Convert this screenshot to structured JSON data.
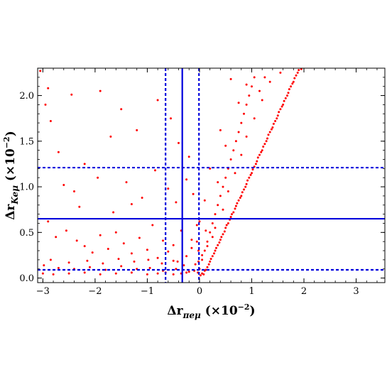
{
  "chart_data": {
    "type": "scatter",
    "title": "",
    "xlabel": {
      "symbol": "Δr",
      "subscript": "πeμ",
      "unit_prefix": " (×10",
      "exponent": "−2",
      "unit_suffix": ")"
    },
    "ylabel": {
      "symbol": "Δr",
      "subscript": "Keμ",
      "unit_prefix": " (×10",
      "exponent": "−2",
      "unit_suffix": ")"
    },
    "xlim": [
      -3.1,
      3.55
    ],
    "ylim": [
      -0.05,
      2.3
    ],
    "x_ticks": [
      -3,
      -2,
      -1,
      0,
      1,
      2,
      3
    ],
    "x_tick_labels": [
      "−3",
      "−2",
      "−1",
      "0",
      "1",
      "2",
      "3"
    ],
    "y_ticks": [
      0.0,
      0.5,
      1.0,
      1.5,
      2.0
    ],
    "y_tick_labels": [
      "0.0",
      "0.5",
      "1.0",
      "1.5",
      "2.0"
    ],
    "frame": true,
    "grid": false,
    "point_color": "#ff0000",
    "line_color": "#0000dd",
    "reference_lines": {
      "vertical_solid": [
        -0.33
      ],
      "vertical_dashed": [
        -0.65,
        -0.01
      ],
      "horizontal_solid": [
        0.65
      ],
      "horizontal_dashed": [
        0.09,
        1.21
      ]
    },
    "series": [
      {
        "points": [
          [
            -3.05,
            2.27
          ],
          [
            -2.9,
            2.08
          ],
          [
            -2.95,
            1.9
          ],
          [
            -2.85,
            1.72
          ],
          [
            -2.45,
            2.01
          ],
          [
            -2.7,
            1.38
          ],
          [
            -2.6,
            1.02
          ],
          [
            -2.4,
            0.95
          ],
          [
            -2.9,
            0.62
          ],
          [
            -2.75,
            0.45
          ],
          [
            -2.55,
            0.52
          ],
          [
            -2.35,
            0.41
          ],
          [
            -2.2,
            0.35
          ],
          [
            -2.05,
            0.28
          ],
          [
            -1.9,
            0.47
          ],
          [
            -1.75,
            0.32
          ],
          [
            -1.6,
            0.5
          ],
          [
            -1.45,
            0.38
          ],
          [
            -1.3,
            0.27
          ],
          [
            -1.15,
            0.44
          ],
          [
            -1.0,
            0.31
          ],
          [
            -0.9,
            0.58
          ],
          [
            -0.8,
            0.22
          ],
          [
            -0.7,
            0.41
          ],
          [
            -0.6,
            0.29
          ],
          [
            -0.5,
            0.36
          ],
          [
            -0.42,
            0.18
          ],
          [
            -0.35,
            0.52
          ],
          [
            -0.25,
            0.24
          ],
          [
            -0.15,
            0.33
          ],
          [
            -0.08,
            0.15
          ],
          [
            -2.98,
            0.14
          ],
          [
            -2.7,
            0.11
          ],
          [
            -2.4,
            0.1
          ],
          [
            -2.1,
            0.12
          ],
          [
            -1.8,
            0.09
          ],
          [
            -1.5,
            0.13
          ],
          [
            -1.2,
            0.1
          ],
          [
            -0.95,
            0.11
          ],
          [
            -0.7,
            0.08
          ],
          [
            -0.45,
            0.1
          ],
          [
            -0.2,
            0.07
          ],
          [
            -2.85,
            0.2
          ],
          [
            -2.5,
            0.17
          ],
          [
            -2.15,
            0.19
          ],
          [
            -1.85,
            0.16
          ],
          [
            -1.55,
            0.21
          ],
          [
            -1.25,
            0.18
          ],
          [
            -0.98,
            0.2
          ],
          [
            -0.72,
            0.16
          ],
          [
            -0.5,
            0.19
          ],
          [
            -0.3,
            0.14
          ],
          [
            -1.9,
            2.05
          ],
          [
            -1.5,
            1.85
          ],
          [
            -1.2,
            1.62
          ],
          [
            -0.8,
            1.95
          ],
          [
            -0.55,
            1.75
          ],
          [
            -0.4,
            1.48
          ],
          [
            -0.2,
            1.33
          ],
          [
            -1.7,
            1.55
          ],
          [
            -2.2,
            1.25
          ],
          [
            -1.95,
            1.1
          ],
          [
            -1.4,
            1.05
          ],
          [
            -1.1,
            0.88
          ],
          [
            -0.85,
            1.18
          ],
          [
            -0.6,
            0.98
          ],
          [
            -0.45,
            0.83
          ],
          [
            -0.25,
            1.08
          ],
          [
            -0.12,
            0.92
          ],
          [
            -2.3,
            0.78
          ],
          [
            -1.65,
            0.72
          ],
          [
            -1.3,
            0.81
          ],
          [
            -0.15,
            0.42
          ],
          [
            -0.05,
            0.58
          ],
          [
            0.05,
            0.05
          ],
          [
            0.1,
            0.08
          ],
          [
            0.15,
            0.12
          ],
          [
            0.2,
            0.18
          ],
          [
            0.25,
            0.24
          ],
          [
            0.3,
            0.3
          ],
          [
            0.35,
            0.36
          ],
          [
            0.4,
            0.42
          ],
          [
            0.45,
            0.48
          ],
          [
            0.5,
            0.55
          ],
          [
            0.55,
            0.6
          ],
          [
            0.6,
            0.67
          ],
          [
            0.65,
            0.72
          ],
          [
            0.7,
            0.79
          ],
          [
            0.75,
            0.85
          ],
          [
            0.8,
            0.9
          ],
          [
            0.85,
            0.97
          ],
          [
            0.9,
            1.03
          ],
          [
            0.95,
            1.1
          ],
          [
            1.0,
            1.15
          ],
          [
            1.05,
            1.22
          ],
          [
            1.1,
            1.28
          ],
          [
            1.15,
            1.35
          ],
          [
            1.2,
            1.4
          ],
          [
            1.25,
            1.47
          ],
          [
            1.3,
            1.53
          ],
          [
            1.35,
            1.6
          ],
          [
            1.4,
            1.65
          ],
          [
            1.45,
            1.72
          ],
          [
            1.5,
            1.78
          ],
          [
            1.55,
            1.85
          ],
          [
            1.6,
            1.9
          ],
          [
            1.65,
            1.97
          ],
          [
            1.7,
            2.03
          ],
          [
            1.75,
            2.1
          ],
          [
            1.8,
            2.15
          ],
          [
            1.85,
            2.22
          ],
          [
            1.9,
            2.28
          ],
          [
            0.08,
            0.04
          ],
          [
            0.12,
            0.09
          ],
          [
            0.18,
            0.15
          ],
          [
            0.22,
            0.21
          ],
          [
            0.28,
            0.27
          ],
          [
            0.32,
            0.33
          ],
          [
            0.38,
            0.39
          ],
          [
            0.42,
            0.45
          ],
          [
            0.48,
            0.51
          ],
          [
            0.52,
            0.58
          ],
          [
            0.58,
            0.64
          ],
          [
            0.62,
            0.7
          ],
          [
            0.68,
            0.76
          ],
          [
            0.72,
            0.82
          ],
          [
            0.78,
            0.88
          ],
          [
            0.82,
            0.94
          ],
          [
            0.88,
            1.0
          ],
          [
            0.92,
            1.07
          ],
          [
            0.98,
            1.13
          ],
          [
            1.02,
            1.19
          ],
          [
            1.08,
            1.25
          ],
          [
            1.12,
            1.32
          ],
          [
            1.18,
            1.38
          ],
          [
            1.22,
            1.44
          ],
          [
            1.28,
            1.5
          ],
          [
            1.32,
            1.57
          ],
          [
            1.38,
            1.63
          ],
          [
            1.42,
            1.69
          ],
          [
            1.48,
            1.75
          ],
          [
            1.52,
            1.82
          ],
          [
            1.58,
            1.88
          ],
          [
            1.62,
            1.94
          ],
          [
            1.68,
            2.0
          ],
          [
            1.72,
            2.07
          ],
          [
            1.78,
            2.13
          ],
          [
            1.82,
            2.19
          ],
          [
            1.88,
            2.25
          ],
          [
            0.0,
            0.1
          ],
          [
            0.05,
            0.2
          ],
          [
            0.1,
            0.3
          ],
          [
            0.15,
            0.4
          ],
          [
            0.2,
            0.5
          ],
          [
            0.25,
            0.6
          ],
          [
            0.3,
            0.7
          ],
          [
            0.35,
            0.8
          ],
          [
            0.4,
            0.9
          ],
          [
            0.45,
            1.0
          ],
          [
            0.5,
            1.1
          ],
          [
            0.55,
            1.2
          ],
          [
            0.6,
            1.3
          ],
          [
            0.65,
            1.4
          ],
          [
            0.7,
            1.5
          ],
          [
            0.75,
            1.6
          ],
          [
            0.8,
            1.7
          ],
          [
            0.85,
            1.8
          ],
          [
            0.9,
            1.9
          ],
          [
            0.95,
            2.0
          ],
          [
            1.0,
            2.1
          ],
          [
            1.05,
            2.2
          ],
          [
            0.3,
            0.55
          ],
          [
            0.45,
            0.75
          ],
          [
            0.55,
            0.95
          ],
          [
            0.68,
            1.15
          ],
          [
            0.8,
            1.35
          ],
          [
            0.9,
            1.55
          ],
          [
            1.05,
            1.75
          ],
          [
            1.2,
            1.95
          ],
          [
            1.35,
            2.15
          ],
          [
            0.6,
            2.18
          ],
          [
            0.9,
            2.12
          ],
          [
            1.15,
            2.05
          ],
          [
            0.4,
            1.62
          ],
          [
            0.2,
            1.2
          ],
          [
            0.1,
            0.85
          ],
          [
            0.0,
            0.62
          ],
          [
            -0.05,
            0.4
          ],
          [
            0.15,
            0.35
          ],
          [
            0.25,
            0.45
          ],
          [
            0.05,
            0.25
          ],
          [
            -0.02,
            0.18
          ],
          [
            -0.1,
            0.08
          ],
          [
            -0.25,
            0.06
          ],
          [
            -0.35,
            0.05
          ],
          [
            -0.5,
            0.04
          ],
          [
            -0.65,
            0.06
          ],
          [
            -0.8,
            0.05
          ],
          [
            -1.0,
            0.04
          ],
          [
            -1.3,
            0.06
          ],
          [
            -1.6,
            0.05
          ],
          [
            -1.9,
            0.04
          ],
          [
            -2.2,
            0.06
          ],
          [
            -2.5,
            0.05
          ],
          [
            -2.8,
            0.04
          ],
          [
            -3.0,
            0.05
          ],
          [
            0.02,
            0.03
          ],
          [
            -0.03,
            0.06
          ],
          [
            1.95,
            2.29
          ],
          [
            1.55,
            2.25
          ],
          [
            1.25,
            2.2
          ],
          [
            0.75,
            1.92
          ],
          [
            0.5,
            1.45
          ],
          [
            0.35,
            1.05
          ],
          [
            0.12,
            0.52
          ],
          [
            -0.02,
            0.3
          ]
        ]
      }
    ]
  }
}
